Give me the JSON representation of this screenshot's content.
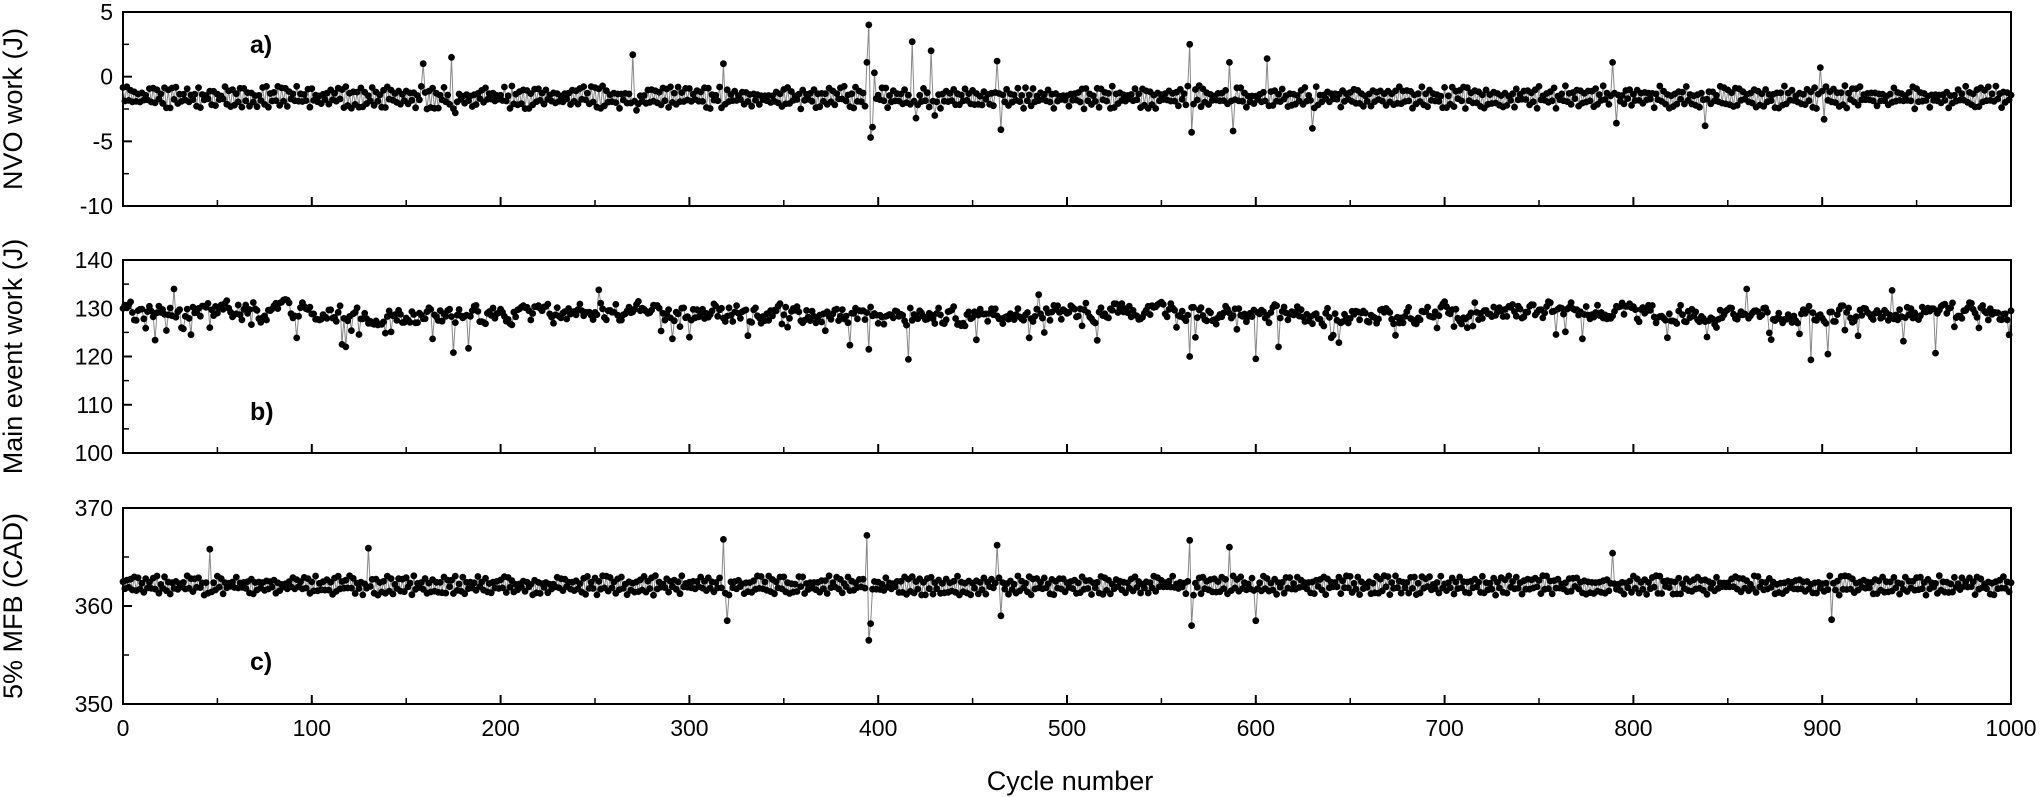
{
  "chart_data": [
    {
      "type": "line",
      "panel_label": "a)",
      "ylabel": "NVO work (J)",
      "xlabel": "",
      "xlim": [
        0,
        1000
      ],
      "ylim": [
        -10,
        5
      ],
      "yticks": [
        5,
        0,
        -5,
        -10
      ],
      "xticks": [
        0,
        100,
        200,
        300,
        400,
        500,
        600,
        700,
        800,
        900,
        1000
      ],
      "series_style": "scatter markers joined by thin grey line",
      "baseline": -1.6,
      "noise_amplitude": 0.9,
      "noise_pattern": "alternating",
      "notable_points": [
        {
          "x": 159,
          "y": 1.0
        },
        {
          "x": 161,
          "y": -2.5
        },
        {
          "x": 174,
          "y": 1.5
        },
        {
          "x": 176,
          "y": -2.8
        },
        {
          "x": 270,
          "y": 1.7
        },
        {
          "x": 272,
          "y": -2.6
        },
        {
          "x": 318,
          "y": 1.0
        },
        {
          "x": 394,
          "y": 1.1
        },
        {
          "x": 395,
          "y": 4.0
        },
        {
          "x": 396,
          "y": -4.7
        },
        {
          "x": 397,
          "y": -3.9
        },
        {
          "x": 398,
          "y": 0.3
        },
        {
          "x": 418,
          "y": 2.7
        },
        {
          "x": 420,
          "y": -3.2
        },
        {
          "x": 428,
          "y": 2.0
        },
        {
          "x": 430,
          "y": -3.0
        },
        {
          "x": 463,
          "y": 1.2
        },
        {
          "x": 465,
          "y": -4.1
        },
        {
          "x": 565,
          "y": 2.5
        },
        {
          "x": 566,
          "y": -4.3
        },
        {
          "x": 586,
          "y": 1.1
        },
        {
          "x": 588,
          "y": -4.2
        },
        {
          "x": 606,
          "y": 1.4
        },
        {
          "x": 630,
          "y": -4.0
        },
        {
          "x": 789,
          "y": 1.1
        },
        {
          "x": 791,
          "y": -3.6
        },
        {
          "x": 838,
          "y": -3.8
        },
        {
          "x": 899,
          "y": 0.7
        },
        {
          "x": 901,
          "y": -3.3
        }
      ]
    },
    {
      "type": "line",
      "panel_label": "b)",
      "ylabel": "Main event work (J)",
      "xlabel": "",
      "xlim": [
        0,
        1000
      ],
      "ylim": [
        100,
        140
      ],
      "yticks": [
        140,
        130,
        120,
        110,
        100
      ],
      "xticks": [
        0,
        100,
        200,
        300,
        400,
        500,
        600,
        700,
        800,
        900,
        1000
      ],
      "series_style": "scatter markers joined by thin grey line",
      "baseline": 128.8,
      "noise_amplitude": 1.8,
      "noise_pattern": "random",
      "notable_points": [
        {
          "x": 27,
          "y": 134.0
        },
        {
          "x": 116,
          "y": 122.5
        },
        {
          "x": 118,
          "y": 122.0
        },
        {
          "x": 175,
          "y": 120.8
        },
        {
          "x": 183,
          "y": 121.7
        },
        {
          "x": 252,
          "y": 133.8
        },
        {
          "x": 395,
          "y": 121.5
        },
        {
          "x": 416,
          "y": 119.4
        },
        {
          "x": 485,
          "y": 132.8
        },
        {
          "x": 565,
          "y": 120.0
        },
        {
          "x": 600,
          "y": 119.5
        },
        {
          "x": 612,
          "y": 122.0
        },
        {
          "x": 638,
          "y": 130.0
        },
        {
          "x": 860,
          "y": 134.0
        },
        {
          "x": 894,
          "y": 119.3
        },
        {
          "x": 903,
          "y": 120.5
        },
        {
          "x": 937,
          "y": 133.7
        },
        {
          "x": 960,
          "y": 120.7
        },
        {
          "x": 999,
          "y": 124.5
        }
      ]
    },
    {
      "type": "line",
      "panel_label": "c)",
      "ylabel": "5% MFB (CAD)",
      "xlabel": "Cycle number",
      "xlim": [
        0,
        1000
      ],
      "ylim": [
        350,
        370
      ],
      "yticks": [
        370,
        360,
        350
      ],
      "xticks": [
        0,
        100,
        200,
        300,
        400,
        500,
        600,
        700,
        800,
        900,
        1000
      ],
      "series_style": "scatter markers joined by thin grey line",
      "baseline": 362.1,
      "noise_amplitude": 1.0,
      "noise_pattern": "alternating",
      "notable_points": [
        {
          "x": 46,
          "y": 365.8
        },
        {
          "x": 130,
          "y": 365.9
        },
        {
          "x": 318,
          "y": 366.8
        },
        {
          "x": 320,
          "y": 358.5
        },
        {
          "x": 394,
          "y": 367.2
        },
        {
          "x": 395,
          "y": 356.5
        },
        {
          "x": 396,
          "y": 358.2
        },
        {
          "x": 463,
          "y": 366.2
        },
        {
          "x": 465,
          "y": 359.0
        },
        {
          "x": 565,
          "y": 366.7
        },
        {
          "x": 566,
          "y": 358.0
        },
        {
          "x": 586,
          "y": 366.0
        },
        {
          "x": 600,
          "y": 358.5
        },
        {
          "x": 789,
          "y": 365.4
        },
        {
          "x": 905,
          "y": 358.6
        }
      ]
    }
  ]
}
